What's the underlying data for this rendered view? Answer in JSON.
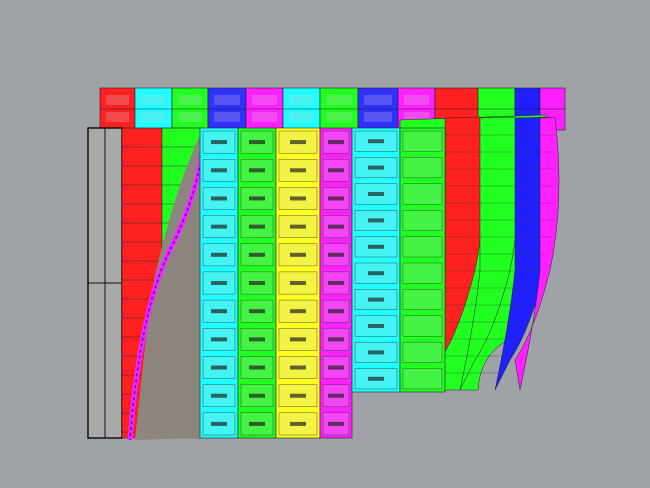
{
  "viewport": {
    "background": "#9fa3a7"
  },
  "model": {
    "back_row_colors": [
      "#ff2020",
      "#20ffff",
      "#20ff20",
      "#3030ff",
      "#ff20ff",
      "#20ffff",
      "#20ff20",
      "#3030ff",
      "#ff20ff",
      "#ff2020",
      "#20ff20",
      "#2020ff",
      "#ff20ff"
    ],
    "front_columns": [
      {
        "color": "#20ffff",
        "rows": 11
      },
      {
        "color": "#20ff20",
        "rows": 11
      },
      {
        "color": "#ffff20",
        "rows": 11
      },
      {
        "color": "#ff20ff",
        "rows": 11
      },
      {
        "color": "#20ffff",
        "rows": 10
      },
      {
        "color": "#20ff20",
        "rows": 10
      },
      {
        "color": "#ff2020",
        "rows": 10
      },
      {
        "color": "#20ff20",
        "rows": 10
      },
      {
        "color": "#2020ff",
        "rows": 10
      }
    ],
    "left_strip_colors": [
      "#ff2020",
      "#20ff20"
    ],
    "panel_label_color": "#222222",
    "side_panel_color": "#a9aaa8",
    "inner_surface_color": "#8d867f"
  }
}
